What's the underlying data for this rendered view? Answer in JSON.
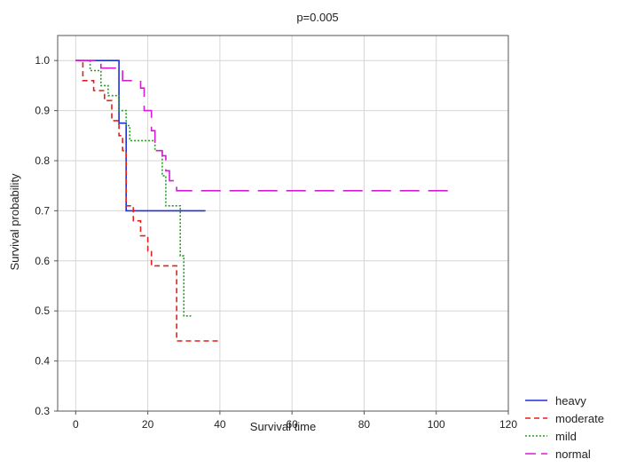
{
  "chart_data": {
    "type": "line",
    "title": "p=0.005",
    "xlabel": "Survival time",
    "ylabel": "Survival probability",
    "xlim": [
      -5,
      120
    ],
    "ylim": [
      0.3,
      1.05
    ],
    "xticks": [
      0,
      20,
      40,
      60,
      80,
      100,
      120
    ],
    "xtick_labels": [
      "0",
      "20",
      "40",
      "60",
      "80",
      "100",
      "120"
    ],
    "yticks": [
      0.3,
      0.4,
      0.5,
      0.6,
      0.7,
      0.8,
      0.9,
      1.0
    ],
    "ytick_labels": [
      "0.3",
      "0.4",
      "0.5",
      "0.6",
      "0.7",
      "0.8",
      "0.9",
      "1.0"
    ],
    "grid": true,
    "legend_position": "bottom-right, outside plot",
    "series": [
      {
        "name": "heavy",
        "color": "#1f2fd6",
        "dash": "solid",
        "x": [
          0,
          12,
          12,
          14,
          14,
          36
        ],
        "y": [
          1.0,
          1.0,
          0.875,
          0.875,
          0.7,
          0.7
        ]
      },
      {
        "name": "moderate",
        "color": "#e0211d",
        "dash": "dashed",
        "x": [
          0,
          2,
          2,
          5,
          5,
          8,
          8,
          10,
          10,
          12,
          12,
          13,
          13,
          14,
          14,
          16,
          16,
          18,
          18,
          20,
          20,
          21,
          21,
          27,
          27,
          28,
          28,
          40
        ],
        "y": [
          1.0,
          1.0,
          0.96,
          0.96,
          0.94,
          0.94,
          0.92,
          0.92,
          0.88,
          0.88,
          0.85,
          0.85,
          0.82,
          0.82,
          0.71,
          0.71,
          0.68,
          0.68,
          0.65,
          0.65,
          0.62,
          0.62,
          0.59,
          0.59,
          0.59,
          0.59,
          0.44,
          0.44
        ]
      },
      {
        "name": "mild",
        "color": "#2a9a2a",
        "dash": "dotted",
        "x": [
          0,
          4,
          4,
          7,
          7,
          9,
          9,
          12,
          12,
          14,
          14,
          15,
          15,
          22,
          22,
          24,
          24,
          25,
          25,
          29,
          29,
          30,
          30,
          31,
          31,
          32
        ],
        "y": [
          1.0,
          1.0,
          0.98,
          0.98,
          0.95,
          0.95,
          0.93,
          0.93,
          0.9,
          0.9,
          0.87,
          0.87,
          0.84,
          0.84,
          0.82,
          0.82,
          0.77,
          0.77,
          0.71,
          0.71,
          0.61,
          0.61,
          0.49,
          0.49,
          0.49,
          0.49
        ]
      },
      {
        "name": "normal",
        "color": "#d21ed2",
        "dash": "longdash",
        "x": [
          0,
          7,
          7,
          13,
          13,
          18,
          18,
          19,
          19,
          21,
          21,
          22,
          22,
          24,
          24,
          25,
          25,
          26,
          26,
          28,
          28,
          105
        ],
        "y": [
          1.0,
          1.0,
          0.985,
          0.985,
          0.96,
          0.96,
          0.945,
          0.945,
          0.9,
          0.9,
          0.86,
          0.86,
          0.82,
          0.82,
          0.81,
          0.81,
          0.78,
          0.78,
          0.76,
          0.76,
          0.74,
          0.74
        ]
      }
    ]
  }
}
